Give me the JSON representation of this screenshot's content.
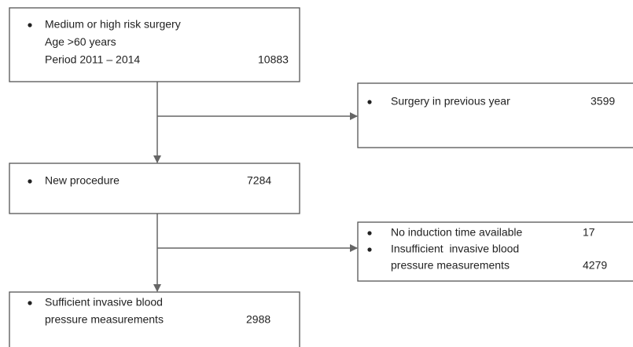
{
  "nodes": [
    {
      "items": [
        {
          "lines": [
            "Medium or high risk surgery",
            "Age >60 years",
            "Period 2011 – 2014"
          ],
          "count": 10883
        }
      ]
    },
    {
      "items": [
        {
          "lines": [
            "Surgery in previous year"
          ],
          "count": 3599
        }
      ]
    },
    {
      "items": [
        {
          "lines": [
            "New procedure"
          ],
          "count": 7284
        }
      ]
    },
    {
      "items": [
        {
          "lines": [
            "No induction time available"
          ],
          "count": 17
        },
        {
          "lines": [
            "Insufficient  invasive blood",
            "pressure measurements"
          ],
          "count": 4279
        }
      ]
    },
    {
      "items": [
        {
          "lines": [
            "Sufficient invasive blood",
            "pressure measurements"
          ],
          "count": 2988
        }
      ]
    }
  ]
}
